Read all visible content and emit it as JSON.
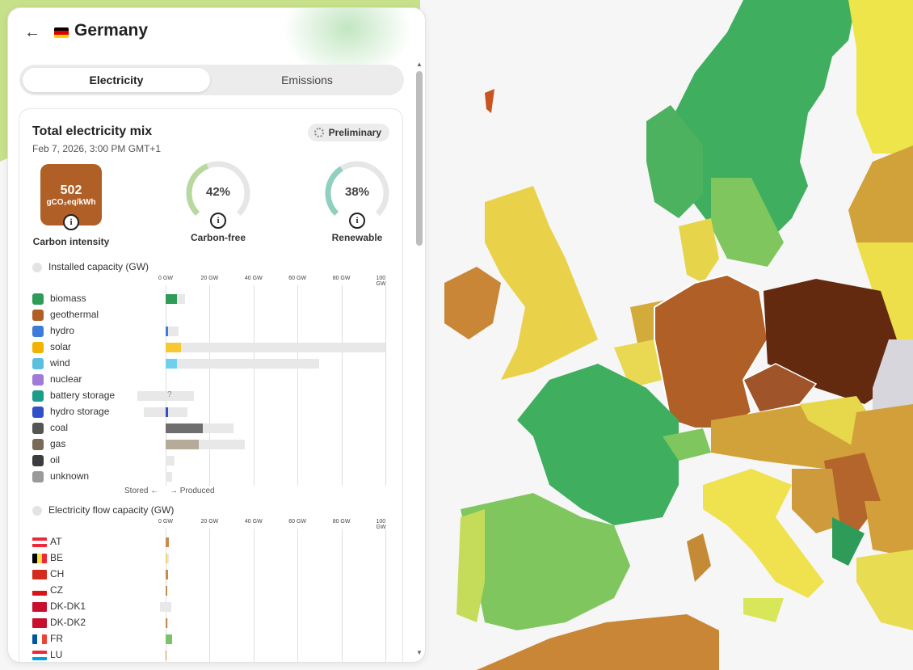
{
  "country": {
    "name": "Germany"
  },
  "tabs": {
    "electricity": "Electricity",
    "emissions": "Emissions"
  },
  "card": {
    "title": "Total electricity mix",
    "date": "Feb 7, 2026, 3:00 PM GMT+1",
    "badge": "Preliminary",
    "carbon_intensity": {
      "value": "502",
      "unit": "gCO₂eq/kWh",
      "label": "Carbon intensity",
      "color": "#b05f26"
    },
    "carbon_free": {
      "value": "42%",
      "label": "Carbon-free",
      "fraction": 0.42,
      "color": "#b7d9a0"
    },
    "renewable": {
      "value": "38%",
      "label": "Renewable",
      "fraction": 0.38,
      "color": "#8fd0c0"
    }
  },
  "installed_capacity": {
    "title": "Installed capacity (GW)",
    "ticks": [
      "0 GW",
      "20 GW",
      "40 GW",
      "60 GW",
      "80 GW",
      "100 GW"
    ],
    "rows": [
      {
        "label": "biomass",
        "icon": "leaf-icon",
        "icon_color": "#2f9b58",
        "produced": 5,
        "capacity": 9,
        "color": "#2f9b58"
      },
      {
        "label": "geothermal",
        "icon": "heat-icon",
        "icon_color": "#b05f26",
        "produced": 0,
        "capacity": 0,
        "color": "#b05f26"
      },
      {
        "label": "hydro",
        "icon": "water-icon",
        "icon_color": "#3b7dd8",
        "produced": 1,
        "capacity": 6,
        "color": "#3b7dd8"
      },
      {
        "label": "solar",
        "icon": "sun-icon",
        "icon_color": "#f0b400",
        "produced": 7,
        "capacity": 100,
        "color": "#f6c933"
      },
      {
        "label": "wind",
        "icon": "wind-icon",
        "icon_color": "#5bc0e0",
        "produced": 5,
        "capacity": 70,
        "color": "#6fcfee"
      },
      {
        "label": "nuclear",
        "icon": "atom-icon",
        "icon_color": "#a07ad8",
        "produced": 0,
        "capacity": 0,
        "color": "#a07ad8"
      },
      {
        "label": "battery storage",
        "icon": "battery-icon",
        "icon_color": "#1c9c8a",
        "stored_capacity": 13,
        "capacity": 13,
        "unknown": "?",
        "color": "#1c9c8a"
      },
      {
        "label": "hydro storage",
        "icon": "pump-icon",
        "icon_color": "#3050c8",
        "stored_capacity": 10,
        "capacity": 10,
        "produced": 1,
        "color": "#3050c8"
      },
      {
        "label": "coal",
        "icon": "coal-icon",
        "icon_color": "#555555",
        "produced": 17,
        "capacity": 31,
        "color": "#6e6e6e"
      },
      {
        "label": "gas",
        "icon": "flame-icon",
        "icon_color": "#7a6a55",
        "produced": 15,
        "capacity": 36,
        "color": "#b5ab98"
      },
      {
        "label": "oil",
        "icon": "drop-icon",
        "icon_color": "#3c3c3c",
        "produced": 0,
        "capacity": 4,
        "color": "#444444"
      },
      {
        "label": "unknown",
        "icon": "question-icon",
        "icon_color": "#9a9a9a",
        "produced": 0,
        "capacity": 3,
        "color": "#9a9a9a"
      }
    ],
    "stored_label": "Stored ←",
    "produced_label": "→ Produced"
  },
  "flow_capacity": {
    "title": "Electricity flow capacity (GW)",
    "ticks": [
      "0 GW",
      "20 GW",
      "40 GW",
      "60 GW",
      "80 GW",
      "100 GW"
    ],
    "rows": [
      {
        "label": "AT",
        "flag": "austria-flag",
        "value": 1.5,
        "capacity": 1.5,
        "color": "#c98a50"
      },
      {
        "label": "BE",
        "flag": "belgium-flag",
        "value": 0.8,
        "capacity": 1.5,
        "color": "#e9d27a"
      },
      {
        "label": "CH",
        "flag": "switzerland-flag",
        "value": 1,
        "capacity": 1,
        "color": "#c98a50"
      },
      {
        "label": "CZ",
        "flag": "czechia-flag",
        "value": 0.6,
        "capacity": 0.6,
        "color": "#c98a50"
      },
      {
        "label": "DK-DK1",
        "flag": "denmark-flag",
        "value": 0,
        "capacity": 5,
        "color": "#c98a50",
        "import_capacity": 2.5
      },
      {
        "label": "DK-DK2",
        "flag": "denmark-flag",
        "value": 0.6,
        "capacity": 1,
        "color": "#c98a50"
      },
      {
        "label": "FR",
        "flag": "france-flag",
        "value": 3,
        "capacity": 3,
        "color": "#7cc26a"
      },
      {
        "label": "LU",
        "flag": "luxembourg-flag",
        "value": 0.4,
        "capacity": 0.4,
        "color": "#c98a50"
      }
    ]
  }
}
